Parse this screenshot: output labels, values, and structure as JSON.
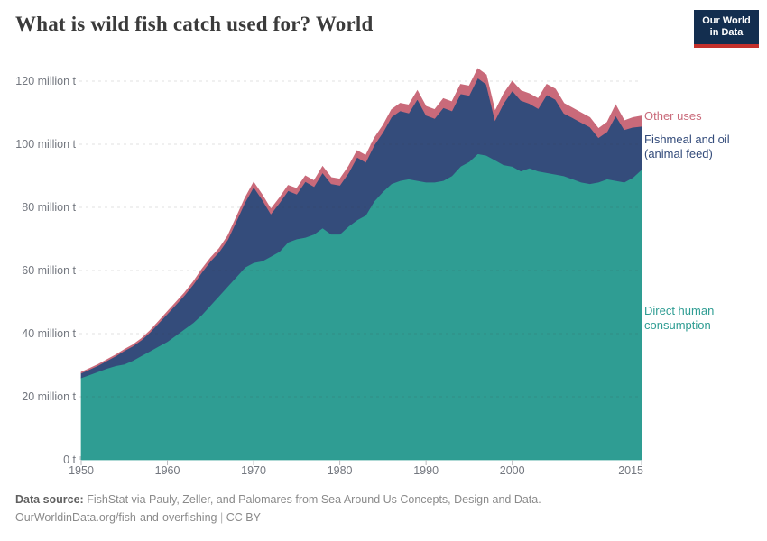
{
  "header": {
    "title": "What is wild fish catch used for? World"
  },
  "logo": {
    "line1": "Our World",
    "line2": "in Data",
    "bg_color": "#132e4f",
    "bar_color": "#c4302b"
  },
  "chart_data": {
    "type": "area",
    "stacked": true,
    "title": "What is wild fish catch used for? World",
    "xlabel": "",
    "ylabel": "",
    "x_range": [
      1950,
      2015
    ],
    "ylim": [
      0,
      125
    ],
    "grid": "dashed-horizontal",
    "legend_position": "right",
    "unit": "million t",
    "x": [
      1950,
      1951,
      1952,
      1953,
      1954,
      1955,
      1956,
      1957,
      1958,
      1959,
      1960,
      1961,
      1962,
      1963,
      1964,
      1965,
      1966,
      1967,
      1968,
      1969,
      1970,
      1971,
      1972,
      1973,
      1974,
      1975,
      1976,
      1977,
      1978,
      1979,
      1980,
      1981,
      1982,
      1983,
      1984,
      1985,
      1986,
      1987,
      1988,
      1989,
      1990,
      1991,
      1992,
      1993,
      1994,
      1995,
      1996,
      1997,
      1998,
      1999,
      2000,
      2001,
      2002,
      2003,
      2004,
      2005,
      2006,
      2007,
      2008,
      2009,
      2010,
      2011,
      2012,
      2013,
      2014,
      2015
    ],
    "series": [
      {
        "name": "Direct human consumption",
        "color": "#2f9d93",
        "values": [
          26,
          27,
          28,
          29,
          29.8,
          30.3,
          31.5,
          33,
          34.5,
          36,
          37.5,
          39.5,
          41.5,
          43.5,
          46,
          49,
          52,
          55,
          58,
          61,
          62.5,
          63,
          64.5,
          66,
          69,
          70,
          70.5,
          71.5,
          73.5,
          71.5,
          71.5,
          74,
          76,
          77.5,
          82,
          85,
          87.5,
          88.5,
          89,
          88.5,
          88,
          88,
          88.5,
          90,
          93,
          94.5,
          97,
          96.5,
          95,
          93.5,
          93,
          91.5,
          92.5,
          91.5,
          91,
          90.5,
          90,
          89,
          88,
          87.5,
          88,
          89,
          88.5,
          88,
          89.5,
          92
        ]
      },
      {
        "name": "Fishmeal and oil (animal feed)",
        "color": "#344c7b",
        "values": [
          1.5,
          1.7,
          1.95,
          2.45,
          3.1,
          4.3,
          4.55,
          5,
          5.95,
          7.4,
          8.8,
          9.75,
          10.7,
          12.1,
          13.5,
          14,
          13.9,
          14.8,
          17.7,
          20.6,
          24,
          19.5,
          13.4,
          15.4,
          16.3,
          14.2,
          17.7,
          15.1,
          17.5,
          16,
          15.5,
          16.9,
          19.9,
          16.8,
          17.8,
          18.8,
          21.2,
          22.1,
          20.9,
          25.8,
          21.2,
          20.2,
          23.1,
          20.6,
          23,
          21,
          24,
          22.5,
          12.6,
          19.5,
          24,
          22.4,
          20.4,
          19.8,
          24.7,
          23.7,
          19.8,
          19.4,
          18.9,
          18,
          14.1,
          15,
          20.6,
          16.6,
          15.9,
          13.7
        ]
      },
      {
        "name": "Other uses",
        "color": "#c96a7a",
        "values": [
          0.3,
          0.3,
          0.35,
          0.35,
          0.4,
          0.4,
          0.45,
          0.5,
          0.55,
          0.6,
          0.7,
          0.75,
          0.8,
          0.9,
          1,
          1,
          1.1,
          1.2,
          1.3,
          1.4,
          1.5,
          1.5,
          1.6,
          1.6,
          1.7,
          1.8,
          1.8,
          1.9,
          2,
          2,
          2,
          2.1,
          2.1,
          2.2,
          2.2,
          2.2,
          2.3,
          2.4,
          2.6,
          2.7,
          2.8,
          2.8,
          2.9,
          2.9,
          3,
          3,
          3,
          3,
          2.9,
          3,
          3,
          3.1,
          3.1,
          3.2,
          3.3,
          3.3,
          3.2,
          3.1,
          3.1,
          3,
          2.9,
          3,
          3.4,
          2.9,
          3.1,
          3.3
        ]
      }
    ],
    "y_ticks": [
      {
        "value": 0,
        "label": "0 t"
      },
      {
        "value": 20,
        "label": "20 million t"
      },
      {
        "value": 40,
        "label": "40 million t"
      },
      {
        "value": 60,
        "label": "60 million t"
      },
      {
        "value": 80,
        "label": "80 million t"
      },
      {
        "value": 100,
        "label": "100 million t"
      },
      {
        "value": 120,
        "label": "120 million t"
      }
    ],
    "x_ticks": [
      {
        "value": 1950,
        "label": "1950"
      },
      {
        "value": 1960,
        "label": "1960"
      },
      {
        "value": 1970,
        "label": "1970"
      },
      {
        "value": 1980,
        "label": "1980"
      },
      {
        "value": 1990,
        "label": "1990"
      },
      {
        "value": 2000,
        "label": "2000"
      },
      {
        "value": 2015,
        "label": "2015"
      }
    ]
  },
  "legend": {
    "other_uses": "Other uses",
    "fishmeal": "Fishmeal and oil (animal feed)",
    "dhc": "Direct human consumption"
  },
  "footer": {
    "label": "Data source:",
    "source": "FishStat via Pauly, Zeller, and Palomares from Sea Around Us Concepts, Design and Data.",
    "link": "OurWorldinData.org/fish-and-overfishing",
    "separator": "|",
    "license": "CC BY"
  }
}
